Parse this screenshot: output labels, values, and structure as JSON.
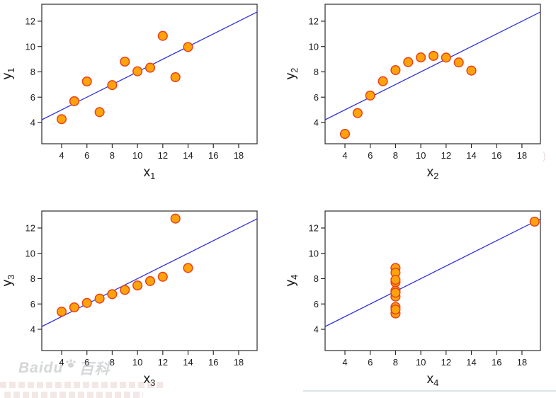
{
  "page": {
    "background": "#ffffff"
  },
  "colors": {
    "marker_fill": "#FFA30A",
    "marker_edge": "#E8401C",
    "fit_line": "#3434DC",
    "axis": "#2b2b2b",
    "tick_text": "#1a1a1a",
    "watermark": "#9aa0a4"
  },
  "chart_data": [
    {
      "type": "scatter",
      "id": "anscombe-1",
      "xlabel": {
        "base": "x",
        "sub": "1"
      },
      "ylabel": {
        "base": "y",
        "sub": "1"
      },
      "points": [
        [
          10,
          8.04
        ],
        [
          8,
          6.95
        ],
        [
          13,
          7.58
        ],
        [
          9,
          8.81
        ],
        [
          11,
          8.33
        ],
        [
          14,
          9.96
        ],
        [
          6,
          7.24
        ],
        [
          4,
          4.26
        ],
        [
          12,
          10.84
        ],
        [
          7,
          4.82
        ],
        [
          5,
          5.68
        ]
      ],
      "fit_line": {
        "slope": 0.5,
        "intercept": 3.0
      },
      "xlim": [
        2.43,
        19.46
      ],
      "ylim": [
        2.32,
        13.34
      ],
      "xticks": [
        4,
        6,
        8,
        10,
        12,
        14,
        16,
        18
      ],
      "yticks": [
        4,
        6,
        8,
        10,
        12
      ],
      "grid": false,
      "legend": null
    },
    {
      "type": "scatter",
      "id": "anscombe-2",
      "xlabel": {
        "base": "x",
        "sub": "2"
      },
      "ylabel": {
        "base": "y",
        "sub": "2"
      },
      "points": [
        [
          10,
          9.14
        ],
        [
          8,
          8.14
        ],
        [
          13,
          8.74
        ],
        [
          9,
          8.77
        ],
        [
          11,
          9.26
        ],
        [
          14,
          8.1
        ],
        [
          6,
          6.13
        ],
        [
          4,
          3.1
        ],
        [
          12,
          9.13
        ],
        [
          7,
          7.26
        ],
        [
          5,
          4.74
        ]
      ],
      "fit_line": {
        "slope": 0.5,
        "intercept": 3.0
      },
      "xlim": [
        2.43,
        19.46
      ],
      "ylim": [
        2.32,
        13.34
      ],
      "xticks": [
        4,
        6,
        8,
        10,
        12,
        14,
        16,
        18
      ],
      "yticks": [
        4,
        6,
        8,
        10,
        12
      ],
      "grid": false,
      "legend": null
    },
    {
      "type": "scatter",
      "id": "anscombe-3",
      "xlabel": {
        "base": "x",
        "sub": "3"
      },
      "ylabel": {
        "base": "y",
        "sub": "3"
      },
      "points": [
        [
          10,
          7.46
        ],
        [
          8,
          6.77
        ],
        [
          13,
          12.74
        ],
        [
          9,
          7.11
        ],
        [
          11,
          7.81
        ],
        [
          14,
          8.84
        ],
        [
          6,
          6.08
        ],
        [
          4,
          5.39
        ],
        [
          12,
          8.15
        ],
        [
          7,
          6.42
        ],
        [
          5,
          5.73
        ]
      ],
      "fit_line": {
        "slope": 0.5,
        "intercept": 3.0
      },
      "xlim": [
        2.43,
        19.46
      ],
      "ylim": [
        2.32,
        13.34
      ],
      "xticks": [
        4,
        6,
        8,
        10,
        12,
        14,
        16,
        18
      ],
      "yticks": [
        4,
        6,
        8,
        10,
        12
      ],
      "grid": false,
      "legend": null
    },
    {
      "type": "scatter",
      "id": "anscombe-4",
      "xlabel": {
        "base": "x",
        "sub": "4"
      },
      "ylabel": {
        "base": "y",
        "sub": "4"
      },
      "points": [
        [
          8,
          6.58
        ],
        [
          8,
          5.76
        ],
        [
          8,
          7.71
        ],
        [
          8,
          8.84
        ],
        [
          8,
          8.47
        ],
        [
          8,
          7.04
        ],
        [
          8,
          5.25
        ],
        [
          19,
          12.5
        ],
        [
          8,
          5.56
        ],
        [
          8,
          7.91
        ],
        [
          8,
          6.89
        ]
      ],
      "fit_line": {
        "slope": 0.5,
        "intercept": 3.0
      },
      "xlim": [
        2.43,
        19.46
      ],
      "ylim": [
        2.32,
        13.34
      ],
      "xticks": [
        4,
        6,
        8,
        10,
        12,
        14,
        16,
        18
      ],
      "yticks": [
        4,
        6,
        8,
        10,
        12
      ],
      "grid": false,
      "legend": null
    }
  ],
  "watermark": {
    "brand": "Baidu",
    "suffix": "百科"
  }
}
